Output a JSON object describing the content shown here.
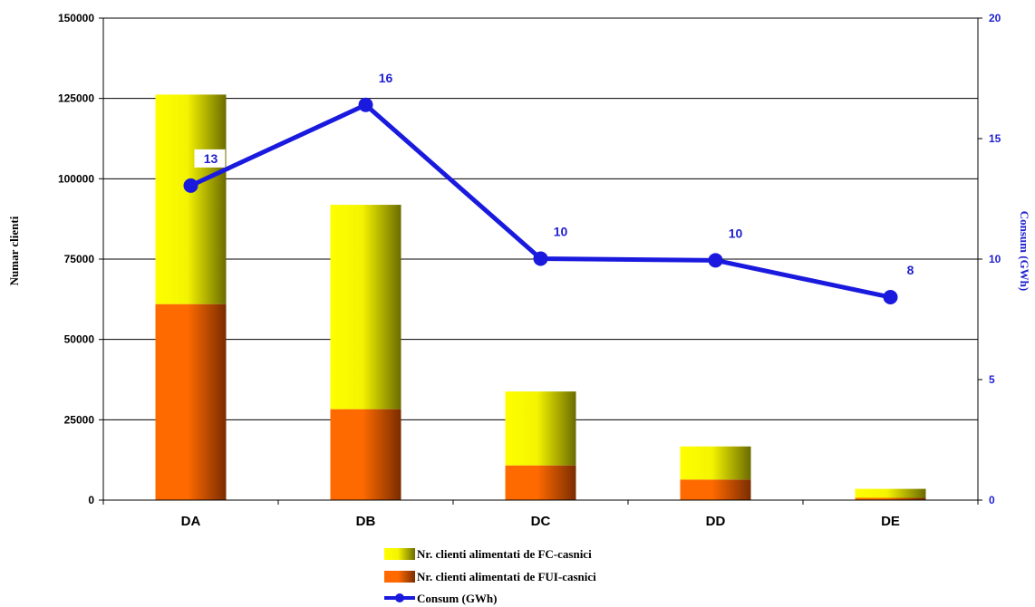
{
  "chart_data": {
    "type": "bar",
    "stacked": true,
    "categories": [
      "DA",
      "DB",
      "DC",
      "DD",
      "DE"
    ],
    "series": [
      {
        "name": "Nr. clienti alimentati de FUI-casnici",
        "values": [
          61000,
          28300,
          10800,
          6400,
          700
        ],
        "color_light": "#ff6a00",
        "color_dark": "#7a2c00"
      },
      {
        "name": "Nr. clienti alimentati de FC-casnici",
        "values": [
          65200,
          63600,
          23000,
          10300,
          2800
        ],
        "color_light": "#ffff00",
        "color_dark": "#6b6b00"
      }
    ],
    "line_series": {
      "name": "Consum (GWh)",
      "values": [
        13.05,
        16.4,
        10.02,
        9.95,
        8.42
      ],
      "labels": [
        "13",
        "16",
        "10",
        "10",
        "8"
      ],
      "color": "#1a1adf",
      "axis": "right"
    },
    "ylabel": "Numar clienti",
    "y2label": "Consum (GWh)",
    "ylim": [
      0,
      150000
    ],
    "y2lim": [
      0,
      20
    ],
    "yticks": [
      0,
      25000,
      50000,
      75000,
      100000,
      125000,
      150000
    ],
    "y2ticks": [
      0,
      5,
      10,
      15,
      20
    ],
    "grid": true,
    "legend_position": "bottom"
  }
}
